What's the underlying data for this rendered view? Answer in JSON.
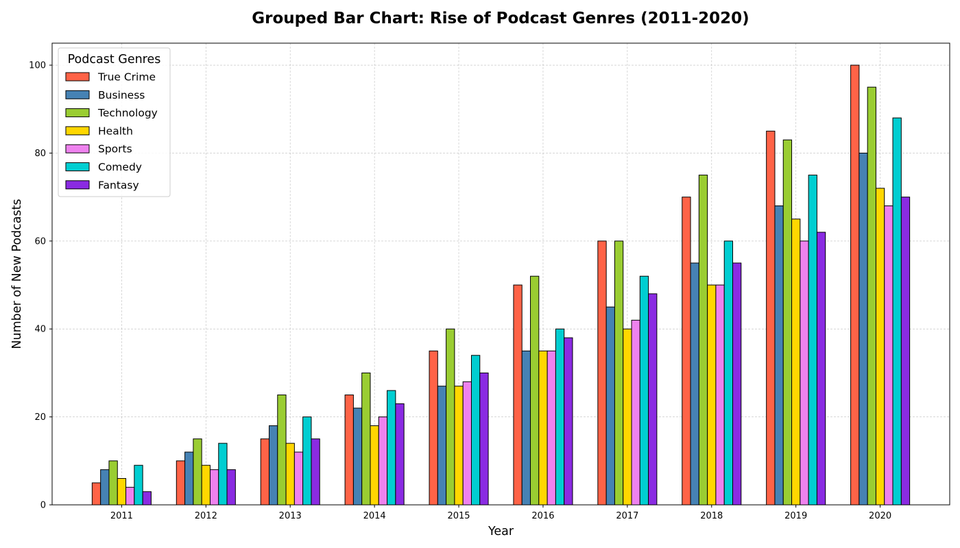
{
  "chart_data": {
    "type": "bar",
    "title": "Grouped Bar Chart: Rise of Podcast Genres (2011-2020)",
    "xlabel": "Year",
    "ylabel": "Number of New Podcasts",
    "categories": [
      "2011",
      "2012",
      "2013",
      "2014",
      "2015",
      "2016",
      "2017",
      "2018",
      "2019",
      "2020"
    ],
    "ylim": [
      0,
      105
    ],
    "yticks": [
      0,
      20,
      40,
      60,
      80,
      100
    ],
    "grid": true,
    "legend": {
      "title": "Podcast Genres",
      "placement": "top-left"
    },
    "series": [
      {
        "name": "True Crime",
        "color": "#ff6347",
        "values": [
          5,
          10,
          15,
          25,
          35,
          50,
          60,
          70,
          85,
          100
        ]
      },
      {
        "name": "Business",
        "color": "#4682b4",
        "values": [
          8,
          12,
          18,
          22,
          27,
          35,
          45,
          55,
          68,
          80
        ]
      },
      {
        "name": "Technology",
        "color": "#9acd32",
        "values": [
          10,
          15,
          25,
          30,
          40,
          52,
          60,
          75,
          83,
          95
        ]
      },
      {
        "name": "Health",
        "color": "#ffd700",
        "values": [
          6,
          9,
          14,
          18,
          27,
          35,
          40,
          50,
          65,
          72
        ]
      },
      {
        "name": "Sports",
        "color": "#ee82ee",
        "values": [
          4,
          8,
          12,
          20,
          28,
          35,
          42,
          50,
          60,
          68
        ]
      },
      {
        "name": "Comedy",
        "color": "#00ced1",
        "values": [
          9,
          14,
          20,
          26,
          34,
          40,
          52,
          60,
          75,
          88
        ]
      },
      {
        "name": "Fantasy",
        "color": "#8a2be2",
        "values": [
          3,
          8,
          15,
          23,
          30,
          38,
          48,
          55,
          62,
          70
        ]
      }
    ]
  }
}
